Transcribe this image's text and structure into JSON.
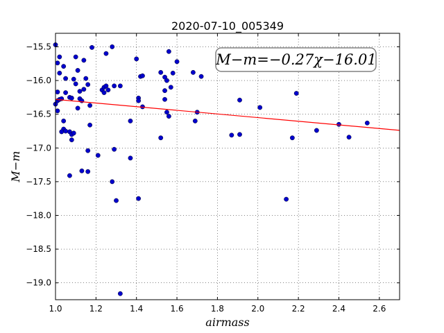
{
  "chart_data": {
    "type": "scatter",
    "title": "2020-07-10_005349",
    "xlabel": "airmass",
    "ylabel": "M−m",
    "xlim": [
      1.0,
      2.7
    ],
    "ylim": [
      -19.25,
      -15.3
    ],
    "xticks": [
      "1.0",
      "1.2",
      "1.4",
      "1.6",
      "1.8",
      "2.0",
      "2.2",
      "2.4",
      "2.6"
    ],
    "xtick_values": [
      1.0,
      1.2,
      1.4,
      1.6,
      1.8,
      2.0,
      2.2,
      2.4,
      2.6
    ],
    "yticks": [
      "−15.5",
      "−16.0",
      "−16.5",
      "−17.0",
      "−17.5",
      "−18.0",
      "−18.5",
      "−19.0"
    ],
    "ytick_values": [
      -15.5,
      -16.0,
      -16.5,
      -17.0,
      -17.5,
      -18.0,
      -18.5,
      -19.0
    ],
    "grid": true,
    "annotation": "M−m=−0.27χ−16.01",
    "fit": {
      "slope": -0.27,
      "intercept": -16.01,
      "color": "#ff0000"
    },
    "point_color": "#0000cc",
    "points": [
      [
        1.0,
        -15.47
      ],
      [
        1.01,
        -15.74
      ],
      [
        1.02,
        -15.65
      ],
      [
        1.04,
        -15.79
      ],
      [
        1.02,
        -15.89
      ],
      [
        1.05,
        -15.97
      ],
      [
        1.09,
        -15.98
      ],
      [
        1.11,
        -15.85
      ],
      [
        1.1,
        -15.65
      ],
      [
        1.14,
        -15.7
      ],
      [
        1.18,
        -15.51
      ],
      [
        1.25,
        -15.6
      ],
      [
        1.28,
        -15.5
      ],
      [
        1.15,
        -15.97
      ],
      [
        1.01,
        -16.17
      ],
      [
        1.01,
        -16.3
      ],
      [
        1.02,
        -16.28
      ],
      [
        1.03,
        -16.27
      ],
      [
        1.0,
        -16.35
      ],
      [
        1.01,
        -16.45
      ],
      [
        1.05,
        -16.18
      ],
      [
        1.07,
        -16.25
      ],
      [
        1.08,
        -16.26
      ],
      [
        1.1,
        -16.05
      ],
      [
        1.12,
        -16.16
      ],
      [
        1.14,
        -16.13
      ],
      [
        1.16,
        -16.06
      ],
      [
        1.12,
        -16.27
      ],
      [
        1.13,
        -16.3
      ],
      [
        1.11,
        -16.41
      ],
      [
        1.17,
        -16.37
      ],
      [
        1.23,
        -16.14
      ],
      [
        1.24,
        -16.1
      ],
      [
        1.24,
        -16.18
      ],
      [
        1.25,
        -16.08
      ],
      [
        1.26,
        -16.14
      ],
      [
        1.29,
        -16.08
      ],
      [
        1.32,
        -16.08
      ],
      [
        1.04,
        -16.6
      ],
      [
        1.04,
        -16.72
      ],
      [
        1.05,
        -16.75
      ],
      [
        1.03,
        -16.76
      ],
      [
        1.07,
        -16.76
      ],
      [
        1.08,
        -16.8
      ],
      [
        1.09,
        -16.78
      ],
      [
        1.08,
        -16.88
      ],
      [
        1.17,
        -16.66
      ],
      [
        1.16,
        -17.04
      ],
      [
        1.21,
        -17.11
      ],
      [
        1.29,
        -17.02
      ],
      [
        1.07,
        -17.41
      ],
      [
        1.13,
        -17.34
      ],
      [
        1.16,
        -17.35
      ],
      [
        1.28,
        -17.5
      ],
      [
        1.3,
        -17.78
      ],
      [
        1.32,
        -19.16
      ],
      [
        1.37,
        -17.15
      ],
      [
        1.37,
        -16.6
      ],
      [
        1.41,
        -17.75
      ],
      [
        1.4,
        -15.68
      ],
      [
        1.42,
        -15.94
      ],
      [
        1.43,
        -15.93
      ],
      [
        1.41,
        -16.26
      ],
      [
        1.41,
        -16.3
      ],
      [
        1.43,
        -16.39
      ],
      [
        1.52,
        -15.88
      ],
      [
        1.54,
        -15.95
      ],
      [
        1.55,
        -16.0
      ],
      [
        1.56,
        -15.57
      ],
      [
        1.57,
        -16.1
      ],
      [
        1.58,
        -15.89
      ],
      [
        1.6,
        -15.72
      ],
      [
        1.54,
        -16.15
      ],
      [
        1.54,
        -16.28
      ],
      [
        1.55,
        -16.47
      ],
      [
        1.56,
        -16.53
      ],
      [
        1.52,
        -16.85
      ],
      [
        1.68,
        -15.88
      ],
      [
        1.72,
        -15.94
      ],
      [
        1.7,
        -16.47
      ],
      [
        1.69,
        -16.6
      ],
      [
        1.87,
        -16.81
      ],
      [
        1.91,
        -16.29
      ],
      [
        1.91,
        -16.8
      ],
      [
        2.01,
        -16.4
      ],
      [
        2.14,
        -17.76
      ],
      [
        2.17,
        -16.85
      ],
      [
        2.19,
        -16.19
      ],
      [
        2.29,
        -16.74
      ],
      [
        2.4,
        -16.65
      ],
      [
        2.45,
        -16.84
      ],
      [
        2.54,
        -16.63
      ]
    ]
  }
}
